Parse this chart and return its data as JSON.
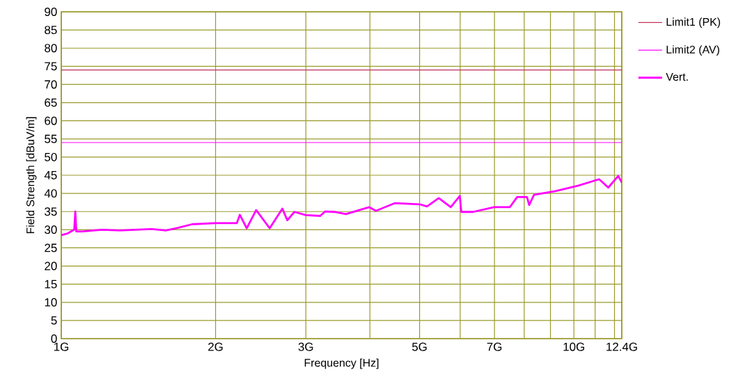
{
  "chart_data": {
    "type": "line",
    "xlabel": "Frequency [Hz]",
    "ylabel": "Field Strength [dBuV/m]",
    "log": "x",
    "grid": true,
    "legend": "right",
    "xlim": [
      1,
      12.4
    ],
    "ylim": [
      0,
      90
    ],
    "xticks": [
      {
        "value": 1,
        "label": "1G"
      },
      {
        "value": 2,
        "label": "2G"
      },
      {
        "value": 3,
        "label": "3G"
      },
      {
        "value": 4,
        "label": null
      },
      {
        "value": 5,
        "label": "5G"
      },
      {
        "value": 6,
        "label": null
      },
      {
        "value": 7,
        "label": "7G"
      },
      {
        "value": 8,
        "label": null
      },
      {
        "value": 9,
        "label": null
      },
      {
        "value": 10,
        "label": "10G"
      },
      {
        "value": 11,
        "label": null
      },
      {
        "value": 12,
        "label": null
      },
      {
        "value": 12.4,
        "label": "12.4G"
      }
    ],
    "yticks": [
      0,
      5,
      10,
      15,
      20,
      25,
      30,
      35,
      40,
      45,
      50,
      55,
      60,
      65,
      70,
      75,
      80,
      85,
      90
    ],
    "ref_lines": [
      {
        "axis": "y",
        "value": 74,
        "label": "Limit1 (PK)",
        "color": "#c0305a"
      },
      {
        "axis": "y",
        "value": 54,
        "label": "Limit2 (AV)",
        "color": "#ff00ff"
      }
    ],
    "series": [
      {
        "name": "Vert.",
        "color": "#ff00ff",
        "x": [
          1.0,
          1.03,
          1.06,
          1.065,
          1.07,
          1.1,
          1.2,
          1.3,
          1.4,
          1.5,
          1.6,
          1.7,
          1.8,
          2.0,
          2.2,
          2.23,
          2.3,
          2.4,
          2.55,
          2.7,
          2.76,
          2.85,
          3.0,
          3.2,
          3.27,
          3.41,
          3.59,
          3.99,
          4.11,
          4.47,
          5.0,
          5.17,
          5.45,
          5.75,
          5.99,
          6.03,
          6.36,
          6.99,
          7.5,
          7.75,
          8.1,
          8.18,
          8.36,
          9.2,
          10.18,
          11.2,
          11.67,
          12.2,
          12.4
        ],
        "values": [
          28.5,
          29,
          30,
          35,
          29.5,
          29.5,
          30,
          29.8,
          30,
          30.2,
          29.8,
          30.6,
          31.5,
          31.8,
          31.8,
          34.1,
          30.4,
          35.4,
          30.4,
          35.8,
          32.6,
          34.9,
          34,
          33.8,
          35,
          34.9,
          34.3,
          36.2,
          35.2,
          37.3,
          37,
          36.4,
          38.7,
          36.2,
          39.3,
          34.9,
          34.9,
          36.2,
          36.2,
          39,
          39,
          36.8,
          39.6,
          40.6,
          42.1,
          43.9,
          41.6,
          44.8,
          43
        ]
      }
    ]
  }
}
